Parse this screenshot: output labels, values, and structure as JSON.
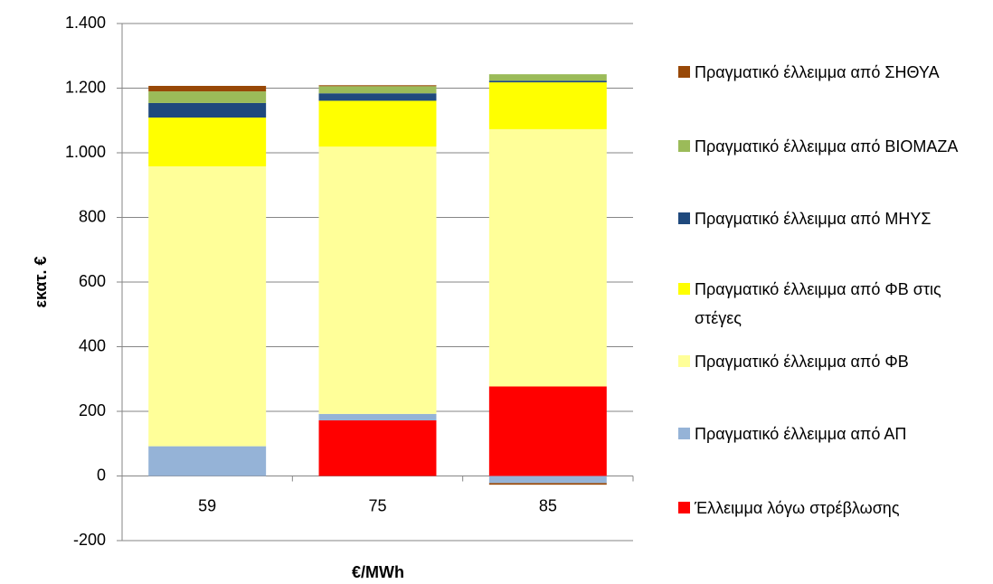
{
  "chart_data": {
    "type": "stacked-bar",
    "ylabel": "εκατ. €",
    "xlabel": "€/MWh",
    "categories": [
      "59",
      "75",
      "85"
    ],
    "ylim": [
      -200,
      1400
    ],
    "yticks": [
      -200,
      0,
      200,
      400,
      600,
      800,
      {
        "value": 1000,
        "label": "1.000"
      },
      {
        "value": 1200,
        "label": "1.200"
      },
      {
        "value": 1400,
        "label": "1.400"
      }
    ],
    "grid": true,
    "series": [
      {
        "name": "Έλλειμμα λόγω στρέβλωσης",
        "color": "#ff0000",
        "values": [
          0,
          172,
          277
        ]
      },
      {
        "name": "Πραγματικό έλλειμμα από ΑΠ",
        "color": "#95b3d7",
        "values": [
          92,
          20,
          -22
        ]
      },
      {
        "name": "Πραγματικό έλλειμμα από ΦΒ",
        "color": "#ffff99",
        "values": [
          866,
          827,
          796
        ]
      },
      {
        "name": "Πραγματικό έλλειμμα από ΦΒ στις στέγες",
        "color": "#ffff00",
        "values": [
          151,
          142,
          145
        ]
      },
      {
        "name": "Πραγματικό έλλειμμα από ΜΗΥΣ",
        "color": "#1f497d",
        "values": [
          45,
          23,
          5
        ]
      },
      {
        "name": "Πραγματικό έλλειμμα από ΒΙΟΜΑΖΑ",
        "color": "#9bbb59",
        "values": [
          36,
          22,
          20
        ]
      },
      {
        "name": "Πραγματικό έλλειμμα από ΣΗΘΥΑ",
        "color": "#984807",
        "values": [
          17,
          3,
          -5
        ]
      }
    ]
  }
}
